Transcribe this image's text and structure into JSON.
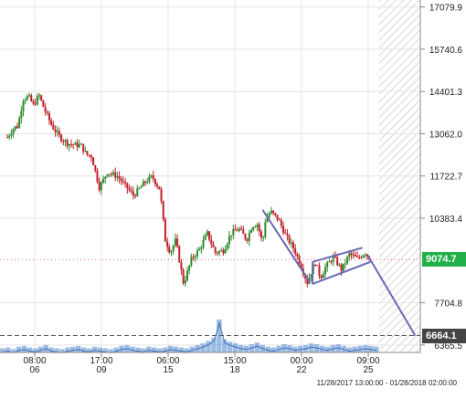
{
  "chart_data": {
    "type": "candlestick",
    "title": "",
    "date_range_label": "11/28/2017 13:00:00 - 01/28/2018 02:00:00",
    "y_ticks": [
      {
        "value": 17079.9,
        "label": "17079.9"
      },
      {
        "value": 15740.6,
        "label": "15740.6"
      },
      {
        "value": 14401.3,
        "label": "14401.3"
      },
      {
        "value": 13062.0,
        "label": "13062.0"
      },
      {
        "value": 11722.7,
        "label": "11722.7"
      },
      {
        "value": 10383.4,
        "label": "10383.4"
      },
      {
        "value": 7704.8,
        "label": "7704.8"
      },
      {
        "value": 6365.5,
        "label": "6365.5"
      }
    ],
    "x_ticks": [
      {
        "time": "08:00",
        "day": "06"
      },
      {
        "time": "17:00",
        "day": "09"
      },
      {
        "time": "06:00",
        "day": "15"
      },
      {
        "time": "15:00",
        "day": "18"
      },
      {
        "time": "00:00",
        "day": "22"
      },
      {
        "time": "09:00",
        "day": "25"
      }
    ],
    "ylim": [
      6130,
      17300
    ],
    "current_price": {
      "value": 9074.7,
      "label": "9074.7",
      "color": "#22b04b"
    },
    "target_price": {
      "value": 6664.1,
      "label": "6664.1",
      "color": "#444444"
    },
    "price_path": [
      [
        0,
        12950
      ],
      [
        0.025,
        13250
      ],
      [
        0.04,
        13300
      ],
      [
        0.06,
        14150
      ],
      [
        0.08,
        14250
      ],
      [
        0.1,
        13950
      ],
      [
        0.12,
        14300
      ],
      [
        0.14,
        13850
      ],
      [
        0.17,
        13300
      ],
      [
        0.2,
        12950
      ],
      [
        0.23,
        12750
      ],
      [
        0.26,
        12700
      ],
      [
        0.28,
        12700
      ],
      [
        0.3,
        12400
      ],
      [
        0.32,
        12350
      ],
      [
        0.35,
        11350
      ],
      [
        0.38,
        11850
      ],
      [
        0.42,
        11700
      ],
      [
        0.45,
        11400
      ],
      [
        0.48,
        11100
      ],
      [
        0.52,
        11500
      ],
      [
        0.55,
        11700
      ],
      [
        0.58,
        11300
      ],
      [
        0.6,
        9700
      ],
      [
        0.62,
        9300
      ],
      [
        0.64,
        9700
      ],
      [
        0.67,
        8300
      ],
      [
        0.7,
        9100
      ],
      [
        0.73,
        9400
      ],
      [
        0.76,
        9900
      ],
      [
        0.79,
        9300
      ],
      [
        0.82,
        9350
      ],
      [
        0.85,
        9900
      ],
      [
        0.88,
        10050
      ],
      [
        0.91,
        9700
      ],
      [
        0.93,
        10150
      ],
      [
        0.95,
        10200
      ],
      [
        0.97,
        9600
      ],
      [
        0.98,
        10300
      ],
      [
        1.0,
        10600
      ],
      [
        1.03,
        10350
      ],
      [
        1.06,
        9800
      ],
      [
        1.09,
        9400
      ],
      [
        1.12,
        8800
      ],
      [
        1.14,
        8350
      ],
      [
        1.17,
        9000
      ],
      [
        1.19,
        8500
      ],
      [
        1.21,
        8850
      ],
      [
        1.24,
        9150
      ],
      [
        1.27,
        8750
      ],
      [
        1.3,
        9250
      ],
      [
        1.33,
        9100
      ],
      [
        1.36,
        9300
      ],
      [
        1.38,
        9074.7
      ]
    ],
    "pattern_lines": [
      {
        "name": "descending-leg",
        "points": [
          [
            0.97,
            10650
          ],
          [
            1.15,
            8350
          ]
        ]
      },
      {
        "name": "wedge-upper",
        "points": [
          [
            1.16,
            9000
          ],
          [
            1.35,
            9450
          ]
        ]
      },
      {
        "name": "wedge-lower",
        "points": [
          [
            1.16,
            8300
          ],
          [
            1.38,
            9000
          ]
        ]
      },
      {
        "name": "left-edge",
        "points": [
          [
            1.16,
            8300
          ],
          [
            1.16,
            9000
          ]
        ]
      },
      {
        "name": "projection",
        "points": [
          [
            1.37,
            9200
          ],
          [
            1.55,
            6664.1
          ]
        ]
      }
    ],
    "volume_values": [
      5,
      6,
      4,
      7,
      8,
      6,
      5,
      7,
      9,
      6,
      5,
      4,
      6,
      7,
      8,
      6,
      5,
      7,
      6,
      5,
      4,
      6,
      8,
      9,
      7,
      6,
      5,
      7,
      6,
      5,
      6,
      8,
      7,
      6,
      5,
      7,
      9,
      11,
      14,
      18,
      40,
      16,
      13,
      11,
      9,
      8,
      10,
      12,
      9,
      7,
      6,
      8,
      10,
      9,
      7,
      8,
      9,
      11,
      10,
      8,
      7,
      9,
      10,
      8,
      6,
      7,
      8,
      9,
      8,
      7
    ],
    "colors": {
      "up": "#2e8b2e",
      "down": "#c0202a",
      "volume": "#5b8fd0",
      "pattern": "#6a6ab8"
    }
  }
}
